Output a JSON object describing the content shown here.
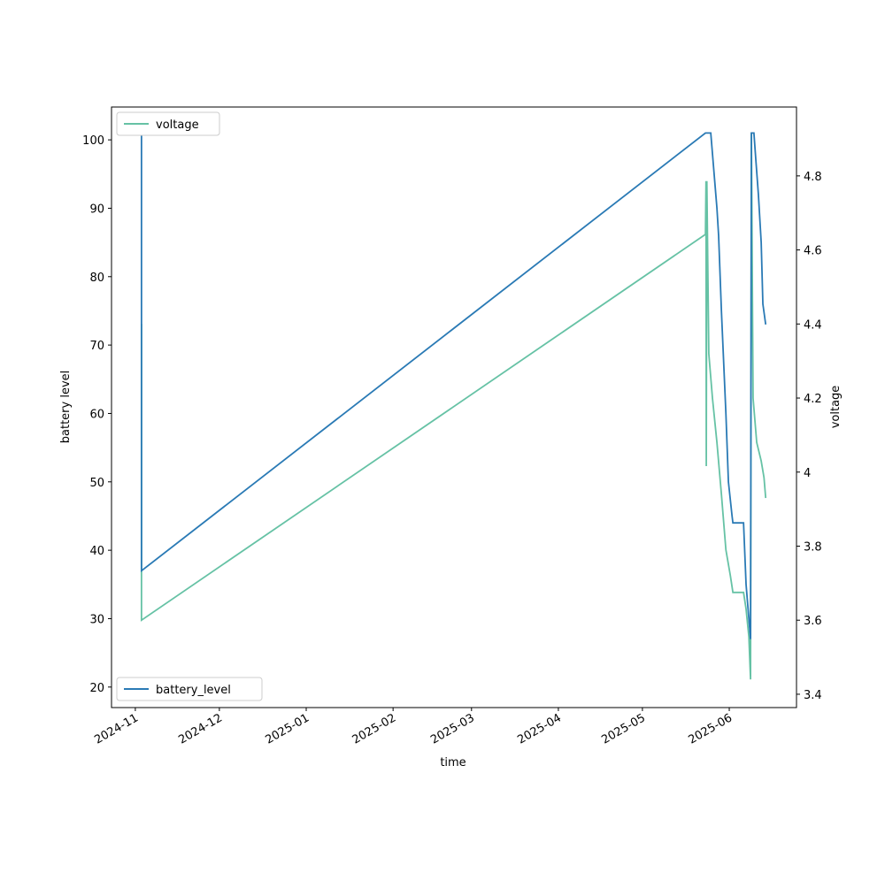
{
  "chart_data": {
    "type": "line",
    "x_label": "time",
    "y_label": "battery level",
    "y2_label": "voltage",
    "series": [
      {
        "name": "voltage",
        "color": "#66c2a5",
        "axis": "y2",
        "legend": "upper left",
        "x": [
          20030.2,
          20030.2,
          20231.5,
          20231.7,
          20231.8,
          20232.0,
          20232.7,
          20234.0,
          20235.6,
          20237.2,
          20238.8,
          20240.4,
          20241.3,
          20245.1,
          20246.0,
          20247.0,
          20247.6,
          20247.9,
          20248.5,
          20249.8,
          20251.4,
          20252.4,
          20253.0
        ],
        "values": [
          4.4,
          3.6,
          4.642,
          4.786,
          4.016,
          4.786,
          4.32,
          4.2,
          4.08,
          3.94,
          3.79,
          3.72,
          3.675,
          3.675,
          3.63,
          3.555,
          3.44,
          4.917,
          4.2,
          4.08,
          4.03,
          3.985,
          3.93
        ]
      },
      {
        "name": "battery_level",
        "color": "#2a7ab5",
        "axis": "y",
        "legend": "lower left",
        "x": [
          20030.2,
          20030.2,
          20231.5,
          20233.4,
          20235.0,
          20235.6,
          20236.2,
          20237.2,
          20238.8,
          20239.7,
          20241.0,
          20241.3,
          20245.1,
          20246.0,
          20247.0,
          20247.6,
          20247.9,
          20248.8,
          20249.5,
          20250.4,
          20251.4,
          20252.0,
          20253.0
        ],
        "values": [
          101,
          37,
          101,
          101,
          93,
          90,
          86,
          75,
          60,
          50,
          45,
          44,
          44,
          35,
          30,
          27,
          101,
          101,
          97,
          92,
          85,
          76,
          73
        ]
      }
    ],
    "xlim": [
      20019.5,
      20264
    ],
    "xticks": [
      {
        "value": 20028,
        "label": "2024-11"
      },
      {
        "value": 20058,
        "label": "2024-12"
      },
      {
        "value": 20089,
        "label": "2025-01"
      },
      {
        "value": 20120,
        "label": "2025-02"
      },
      {
        "value": 20148,
        "label": "2025-03"
      },
      {
        "value": 20179,
        "label": "2025-04"
      },
      {
        "value": 20209,
        "label": "2025-05"
      },
      {
        "value": 20240,
        "label": "2025-06"
      }
    ],
    "ylim": [
      17.0,
      104.8
    ],
    "yticks": [
      20,
      30,
      40,
      50,
      60,
      70,
      80,
      90,
      100
    ],
    "y2lim": [
      3.364,
      4.986
    ],
    "y2ticks": [
      3.4,
      3.6,
      3.8,
      4.0,
      4.2,
      4.4,
      4.6,
      4.8
    ],
    "grid": false
  }
}
